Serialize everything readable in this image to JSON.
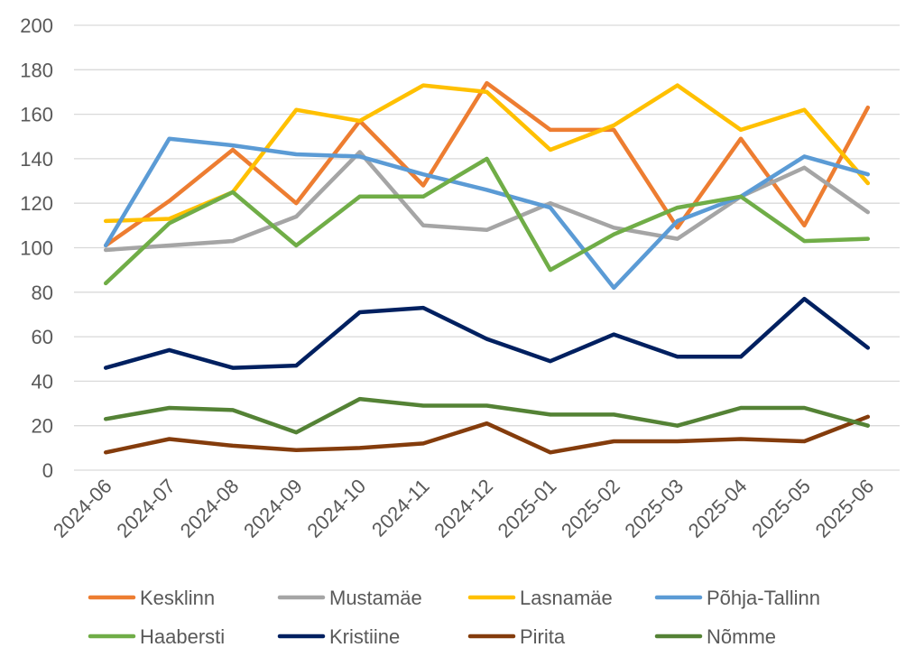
{
  "chart_data": {
    "type": "line",
    "title": "",
    "xlabel": "",
    "ylabel": "",
    "ylim": [
      0,
      200
    ],
    "yticks": [
      0,
      20,
      40,
      60,
      80,
      100,
      120,
      140,
      160,
      180,
      200
    ],
    "grid": true,
    "legend_position": "bottom",
    "categories": [
      "2024-06",
      "2024-07",
      "2024-08",
      "2024-09",
      "2024-10",
      "2024-11",
      "2024-12",
      "2025-01",
      "2025-02",
      "2025-03",
      "2025-04",
      "2025-05",
      "2025-06"
    ],
    "series": [
      {
        "name": "Kesklinn",
        "color": "#ED7D31",
        "values": [
          101,
          121,
          144,
          120,
          157,
          128,
          174,
          153,
          153,
          109,
          149,
          110,
          163
        ]
      },
      {
        "name": "Mustamäe",
        "color": "#A5A5A5",
        "values": [
          99,
          101,
          103,
          114,
          143,
          110,
          108,
          120,
          109,
          104,
          123,
          136,
          116
        ]
      },
      {
        "name": "Lasnamäe",
        "color": "#FFC000",
        "values": [
          112,
          113,
          125,
          162,
          157,
          173,
          170,
          144,
          155,
          173,
          153,
          162,
          129
        ]
      },
      {
        "name": "Põhja-Tallinn",
        "color": "#5B9BD5",
        "values": [
          101,
          149,
          146,
          142,
          141,
          133,
          126,
          118,
          82,
          112,
          123,
          141,
          133
        ]
      },
      {
        "name": "Haabersti",
        "color": "#70AD47",
        "values": [
          84,
          111,
          125,
          101,
          123,
          123,
          140,
          90,
          106,
          118,
          123,
          103,
          104
        ]
      },
      {
        "name": "Kristiine",
        "color": "#002060",
        "values": [
          46,
          54,
          46,
          47,
          71,
          73,
          59,
          49,
          61,
          51,
          51,
          77,
          55
        ]
      },
      {
        "name": "Pirita",
        "color": "#843C0C",
        "values": [
          8,
          14,
          11,
          9,
          10,
          12,
          21,
          8,
          13,
          13,
          14,
          13,
          24
        ]
      },
      {
        "name": "Nõmme",
        "color": "#548235",
        "values": [
          23,
          28,
          27,
          17,
          32,
          29,
          29,
          25,
          25,
          20,
          28,
          28,
          20
        ]
      }
    ]
  }
}
